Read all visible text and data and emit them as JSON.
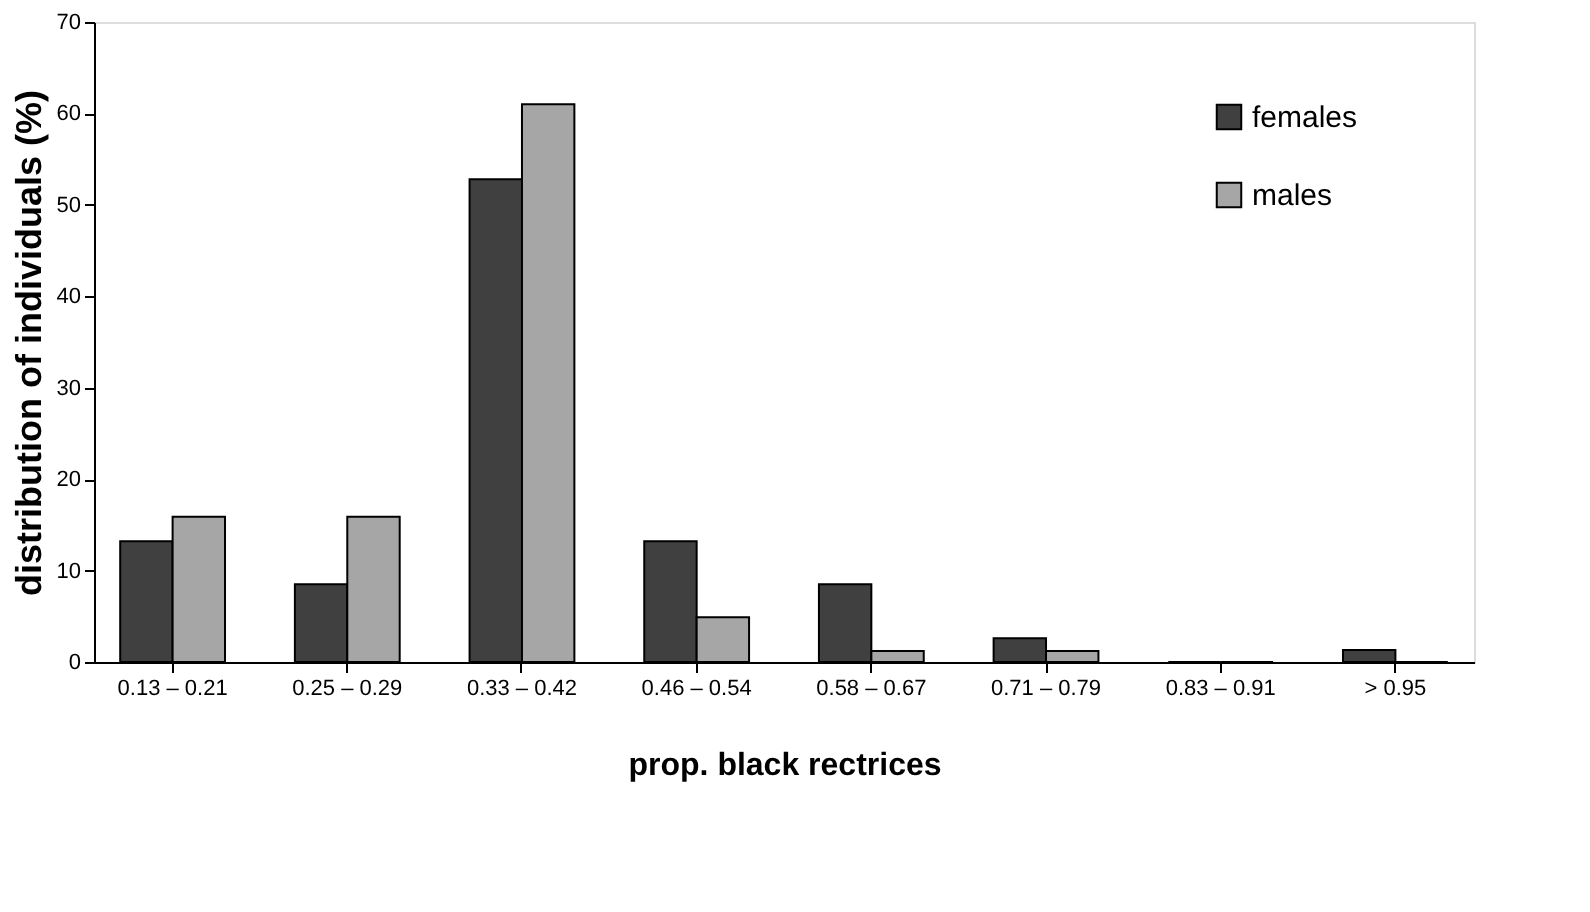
{
  "chart_data": {
    "type": "bar",
    "xlabel": "prop. black rectrices",
    "ylabel": "distribution of individuals (%)",
    "categories": [
      "0.13 – 0.21",
      "0.25 – 0.29",
      "0.33 – 0.42",
      "0.46 – 0.54",
      "0.58 – 0.67",
      "0.71 – 0.79",
      "0.83 – 0.91",
      "> 0.95"
    ],
    "series": [
      {
        "name": "females",
        "color": "#404040",
        "values": [
          13.2,
          8.5,
          52.8,
          13.2,
          8.5,
          2.6,
          0,
          1.3
        ]
      },
      {
        "name": "males",
        "color": "#a6a6a6",
        "values": [
          15.9,
          15.9,
          61,
          4.9,
          1.2,
          1.2,
          0,
          0
        ]
      }
    ],
    "ylim": [
      0,
      70
    ],
    "yticks": [
      0,
      10,
      20,
      30,
      40,
      50,
      60,
      70
    ],
    "grid": false,
    "legend": "top right"
  }
}
